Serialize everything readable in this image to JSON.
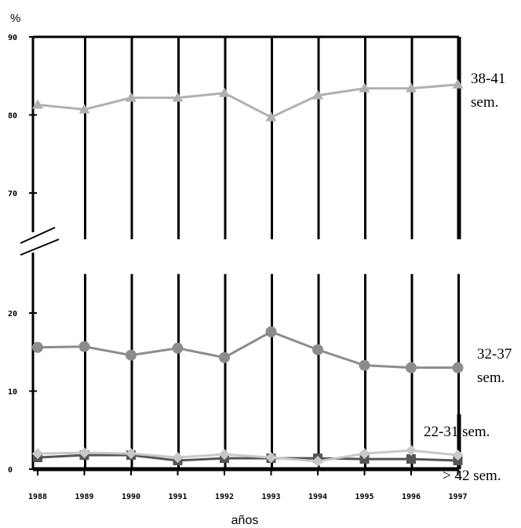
{
  "chart_data": {
    "type": "line",
    "title": "",
    "ylabel": "%",
    "xlabel": "años",
    "x": [
      "1988",
      "1989",
      "1990",
      "1991",
      "1992",
      "1993",
      "1994",
      "1995",
      "1996",
      "1997"
    ],
    "y_ticks": [
      "0",
      "10",
      "20",
      "70",
      "80",
      "90"
    ],
    "y_axis_break": [
      25,
      65
    ],
    "grid": "vertical",
    "series": [
      {
        "name": "38-41 sem.",
        "label_lines": [
          "38-41",
          "sem."
        ],
        "marker": "triangle",
        "color": "#b0b0b0",
        "values": [
          81.3,
          80.7,
          82.2,
          82.2,
          82.8,
          79.7,
          82.5,
          83.4,
          83.4,
          83.9
        ]
      },
      {
        "name": "32-37 sem.",
        "label_lines": [
          "32-37",
          "sem."
        ],
        "marker": "circle",
        "color": "#8c8c8c",
        "values": [
          15.6,
          15.7,
          14.6,
          15.5,
          14.3,
          17.6,
          15.3,
          13.3,
          13.0,
          13.0
        ]
      },
      {
        "name": "22-31 sem.",
        "label_lines": [
          "22-31 sem."
        ],
        "marker": "diamond",
        "color": "#c8c8c8",
        "values": [
          2.0,
          2.1,
          2.0,
          1.5,
          1.9,
          1.5,
          1.0,
          2.0,
          2.4,
          1.8
        ]
      },
      {
        "name": "> 42 sem.",
        "label_lines": [
          "> 42 sem."
        ],
        "marker": "square",
        "color": "#555555",
        "values": [
          1.5,
          1.8,
          1.8,
          1.1,
          1.4,
          1.4,
          1.4,
          1.3,
          1.3,
          1.1
        ]
      }
    ]
  }
}
